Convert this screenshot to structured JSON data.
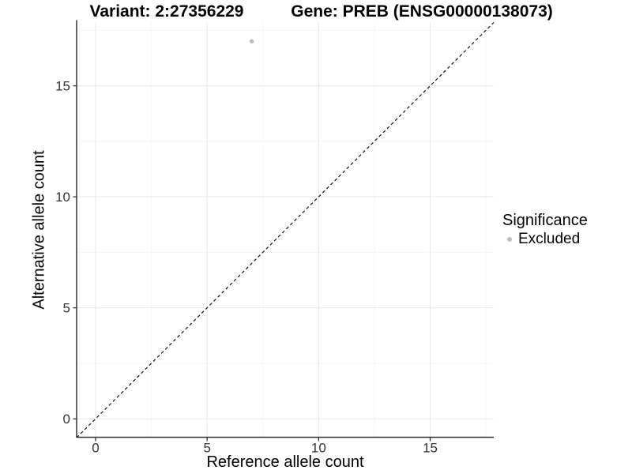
{
  "titles": {
    "variant": "Variant: 2:27356229",
    "gene": "Gene: PREB (ENSG00000138073)"
  },
  "chart_data": {
    "type": "scatter",
    "title_left": "Variant: 2:27356229",
    "title_right": "Gene: PREB (ENSG00000138073)",
    "xlabel": "Reference allele count",
    "ylabel": "Alternative allele count",
    "xlim": [
      -0.85,
      17.85
    ],
    "ylim": [
      -0.85,
      17.85
    ],
    "xticks": [
      0,
      5,
      10,
      15
    ],
    "yticks": [
      0,
      5,
      10,
      15
    ],
    "minor_breaks": [
      2.5,
      7.5,
      12.5,
      17.5
    ],
    "grid": "major+minor",
    "points": [
      {
        "x": 7,
        "y": 17,
        "series": "Excluded"
      }
    ],
    "reference_line": {
      "slope": 1,
      "intercept": 0,
      "style": "dashed",
      "color": "#000000"
    },
    "legend": {
      "title": "Significance",
      "position": "right",
      "entries": [
        {
          "label": "Excluded",
          "color": "#bebebe",
          "marker": "dot"
        }
      ]
    },
    "colors": {
      "point": "#bebebe",
      "axis_line": "#333333",
      "tick_label": "#333333",
      "grid_major": "#e9e9e9",
      "grid_minor": "#f4f4f4",
      "background": "#ffffff"
    }
  }
}
